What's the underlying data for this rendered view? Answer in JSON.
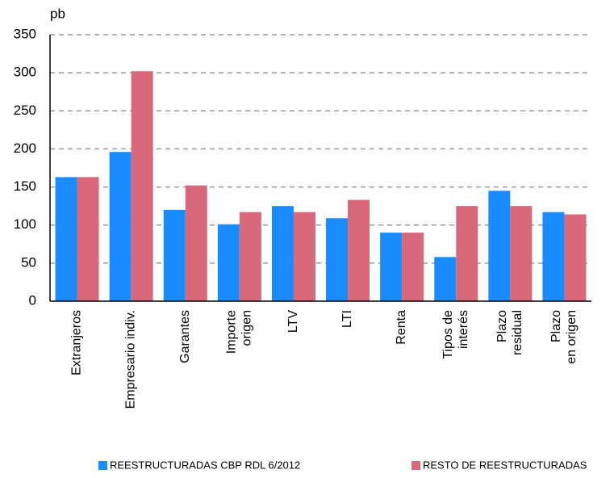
{
  "chart_data": {
    "type": "bar",
    "y_label": "pb",
    "categories": [
      "Extranjeros",
      "Empresario indiv.",
      "Garantes",
      "Importe\norigen",
      "LTV",
      "LTI",
      "Renta",
      "Tipos de\ninterés",
      "Plazo\nresidual",
      "Plazo\nen origen"
    ],
    "series": [
      {
        "name": "REESTRUCTURADAS CBP RDL 6/2012",
        "color": "#1a8cff",
        "values": [
          163,
          196,
          120,
          101,
          125,
          109,
          90,
          58,
          145,
          117
        ]
      },
      {
        "name": "RESTO DE REESTRUCTURADAS",
        "color": "#d9687a",
        "values": [
          163,
          302,
          152,
          117,
          117,
          133,
          90,
          125,
          125,
          114
        ]
      }
    ],
    "ylim": [
      0,
      350
    ],
    "yticks": [
      0,
      50,
      100,
      150,
      200,
      250,
      300,
      350
    ],
    "grid": true
  }
}
